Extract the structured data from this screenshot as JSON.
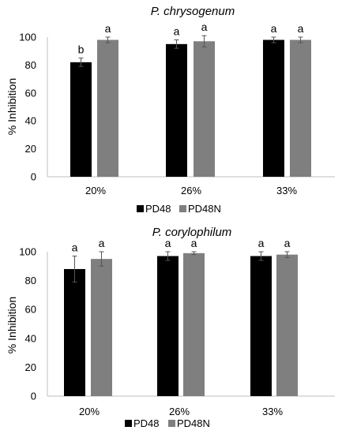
{
  "chart_data": [
    {
      "type": "bar",
      "title": "P. chrysogenum",
      "xlabel": "",
      "ylabel": "% Inhibition",
      "categories": [
        "20%",
        "26%",
        "33%"
      ],
      "ylim": [
        0,
        100
      ],
      "yticks": [
        0,
        20,
        40,
        60,
        80,
        100
      ],
      "grid": false,
      "legend": "bottom",
      "series": [
        {
          "name": "PD48",
          "color": "#000000",
          "values": [
            82,
            95,
            98
          ],
          "errors": [
            3,
            3,
            2
          ],
          "letters": [
            "b",
            "a",
            "a"
          ]
        },
        {
          "name": "PD48N",
          "color": "#7f7f7f",
          "values": [
            98,
            97,
            98
          ],
          "errors": [
            2,
            4,
            2
          ],
          "letters": [
            "a",
            "a",
            "a"
          ]
        }
      ]
    },
    {
      "type": "bar",
      "title": "P. corylophilum",
      "xlabel": "",
      "ylabel": "% Inhibition",
      "categories": [
        "20%",
        "26%",
        "33%"
      ],
      "ylim": [
        0,
        100
      ],
      "yticks": [
        0,
        20,
        40,
        60,
        80,
        100
      ],
      "grid": false,
      "legend": "bottom",
      "series": [
        {
          "name": "PD48",
          "color": "#000000",
          "values": [
            88,
            97,
            97
          ],
          "errors": [
            9,
            3,
            3
          ],
          "letters": [
            "a",
            "a",
            "a"
          ]
        },
        {
          "name": "PD48N",
          "color": "#7f7f7f",
          "values": [
            95,
            99,
            98
          ],
          "errors": [
            5,
            1,
            2
          ],
          "letters": [
            "a",
            "a",
            "a"
          ]
        }
      ]
    }
  ]
}
